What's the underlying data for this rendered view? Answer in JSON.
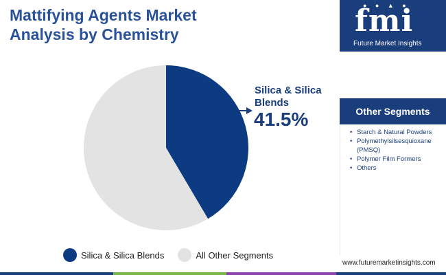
{
  "title_lines": [
    "Mattifying Agents Market",
    "Analysis by Chemistry"
  ],
  "chart_data": {
    "type": "pie",
    "slices": [
      {
        "label": "Silica & Silica Blends",
        "value": 41.5,
        "color": "#0d3b82"
      },
      {
        "label": "All Other Segments",
        "value": 58.5,
        "color": "#e3e3e3"
      }
    ],
    "callout": {
      "label": "Silica & Silica Blends",
      "value": "41.5%"
    },
    "legend_position": "bottom"
  },
  "sidebar": {
    "logo_text": "fmi",
    "logo_caption": "Future Market Insights",
    "segments_title": "Other Segments",
    "segments": [
      "Starch & Natural Powders",
      "Polymethylsilsesquioxane (PMSQ)",
      "Polymer Film Formers",
      "Others"
    ]
  },
  "website": "www.futuremarketinsights.com",
  "colors": {
    "brand_dark": "#1a3e7c",
    "title": "#2a5298",
    "bottom_bar": [
      "#1a3e7c",
      "#7ab648",
      "#f39c12",
      "#8e44ad",
      "#1a3e7c"
    ]
  }
}
